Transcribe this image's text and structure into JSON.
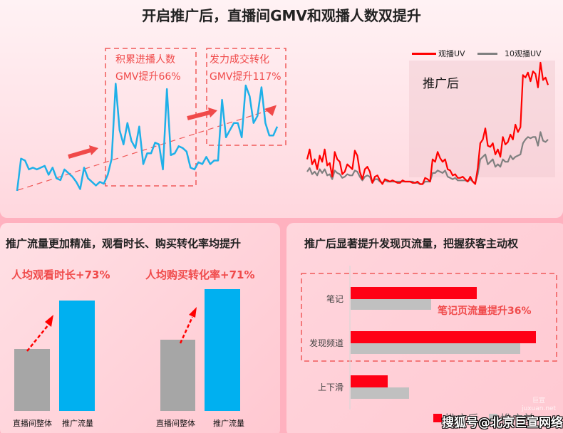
{
  "main_title": "开启推广后，直播间GMV和观播人数双提升",
  "colors": {
    "accent_red": "#f04a4a",
    "line_blue": "#1fb0e8",
    "series_red": "#ff0000",
    "series_gray": "#808080",
    "bar_gray": "#a6a6a6",
    "bar_blue": "#00b0f0",
    "hbar_red": "#ff0015",
    "hbar_gray": "#c0c0c0"
  },
  "top_left": {
    "annotation_1": {
      "line1": "积累进播人数",
      "line2": "GMV提升66%"
    },
    "annotation_2": {
      "line1": "发力成交转化",
      "line2": "GMV提升117%"
    }
  },
  "top_right": {
    "legend": [
      {
        "label": "观播UV",
        "color": "#ff0000"
      },
      {
        "label": "10观播UV",
        "color": "#808080"
      }
    ],
    "shaded_label": "推广后"
  },
  "left_panel": {
    "title": "推广流量更加精准，观看时长、购买转化率均提升",
    "metric_1": "人均观看时长+73%",
    "metric_2": "人均购买转化率+71%",
    "group_1": {
      "bar_labels": [
        "直播间整体",
        "推广流量"
      ]
    },
    "group_2": {
      "bar_labels": [
        "直播间整体",
        "推广流量"
      ]
    }
  },
  "right_panel": {
    "title": "推广后显著提升发现页流量，把握获客主动权",
    "categories": [
      "笔记",
      "发现频道",
      "上下滑"
    ],
    "callout": "笔记页流量提升36%",
    "legend": [
      {
        "label": "推广后",
        "color": "#ff0015"
      },
      {
        "label": "推广前",
        "color": "#c0c0c0"
      }
    ],
    "watermark": "搜狐号@北京巨宣网络",
    "watermark_small_1": "巨宣",
    "watermark_small_2": "juxuan.net"
  },
  "chart_data": [
    {
      "type": "line",
      "title": "直播间GMV",
      "series": [
        {
          "name": "GMV",
          "color": "#1fb0e8",
          "values": [
            12,
            30,
            29,
            24,
            25,
            24,
            25,
            26,
            21,
            25,
            19,
            18,
            24,
            22,
            20,
            17,
            13,
            25,
            19,
            17,
            15,
            17,
            16,
            21,
            30,
            72,
            46,
            38,
            50,
            40,
            36,
            48,
            27,
            33,
            33,
            39,
            38,
            24,
            69,
            32,
            33,
            37,
            36,
            34,
            25,
            24,
            28,
            27,
            31,
            27,
            29,
            29,
            63,
            42,
            46,
            50,
            50,
            42,
            71,
            65,
            50,
            54,
            70,
            50,
            43,
            43,
            48
          ]
        }
      ],
      "annotations": [
        "积累进播人数 GMV提升66%",
        "发力成交转化 GMV提升117%"
      ],
      "trend": "dashed red upward trend line"
    },
    {
      "type": "line",
      "title": "观播UV vs 10观播UV",
      "legend": [
        "观播UV",
        "10观播UV"
      ],
      "shaded_region": "推广后",
      "series": [
        {
          "name": "观播UV",
          "color": "#ff0000",
          "values": [
            22,
            30,
            18,
            22,
            14,
            25,
            20,
            30,
            17,
            19,
            8,
            28,
            22,
            20,
            10,
            12,
            18,
            16,
            14,
            29,
            25,
            12,
            6,
            14,
            16,
            12,
            3,
            8,
            9,
            5,
            2,
            6,
            5,
            4,
            5,
            4,
            3,
            3,
            5,
            4,
            4,
            4,
            3,
            3,
            4,
            2,
            2,
            7,
            6,
            4,
            22,
            20,
            28,
            23,
            20,
            22,
            14,
            13,
            9,
            10,
            7,
            7,
            8,
            6,
            4,
            8,
            4,
            2,
            15,
            35,
            38,
            47,
            33,
            32,
            35,
            26,
            30,
            24,
            40,
            34,
            36,
            42,
            38,
            50,
            44,
            48,
            90,
            88,
            92,
            85,
            93,
            91,
            80,
            100,
            86,
            88,
            82
          ]
        },
        {
          "name": "10观播UV",
          "color": "#808080",
          "values": [
            12,
            15,
            10,
            12,
            9,
            14,
            11,
            14,
            9,
            10,
            6,
            13,
            11,
            10,
            7,
            8,
            10,
            9,
            9,
            13,
            12,
            8,
            5,
            8,
            9,
            8,
            3,
            6,
            6,
            4,
            3,
            5,
            4,
            4,
            4,
            4,
            4,
            4,
            4,
            4,
            4,
            4,
            4,
            3,
            3,
            2,
            2,
            4,
            4,
            4,
            11,
            11,
            13,
            12,
            11,
            13,
            8,
            7,
            6,
            7,
            5,
            5,
            5,
            5,
            4,
            6,
            4,
            3,
            10,
            22,
            24,
            26,
            18,
            20,
            22,
            16,
            18,
            16,
            22,
            20,
            20,
            25,
            22,
            24,
            25,
            26,
            35,
            38,
            40,
            39,
            40,
            40,
            33,
            44,
            37,
            36,
            38
          ]
        }
      ]
    },
    {
      "type": "bar",
      "title": "人均观看时长+73%",
      "categories": [
        "直播间整体",
        "推广流量"
      ],
      "values": [
        100,
        173
      ],
      "colors": [
        "#a6a6a6",
        "#00b0f0"
      ]
    },
    {
      "type": "bar",
      "title": "人均购买转化率+71%",
      "categories": [
        "直播间整体",
        "推广流量"
      ],
      "values": [
        100,
        171
      ],
      "colors": [
        "#a6a6a6",
        "#00b0f0"
      ]
    },
    {
      "type": "bar",
      "orientation": "horizontal",
      "title": "推广后显著提升发现页流量，把握获客主动权",
      "categories": [
        "笔记",
        "发现频道",
        "上下滑"
      ],
      "series": [
        {
          "name": "推广后",
          "color": "#ff0015",
          "values": [
            136,
            200,
            41
          ]
        },
        {
          "name": "推广前",
          "color": "#c0c0c0",
          "values": [
            100,
            183,
            64
          ]
        }
      ],
      "annotations": [
        "笔记页流量提升36%"
      ]
    }
  ]
}
